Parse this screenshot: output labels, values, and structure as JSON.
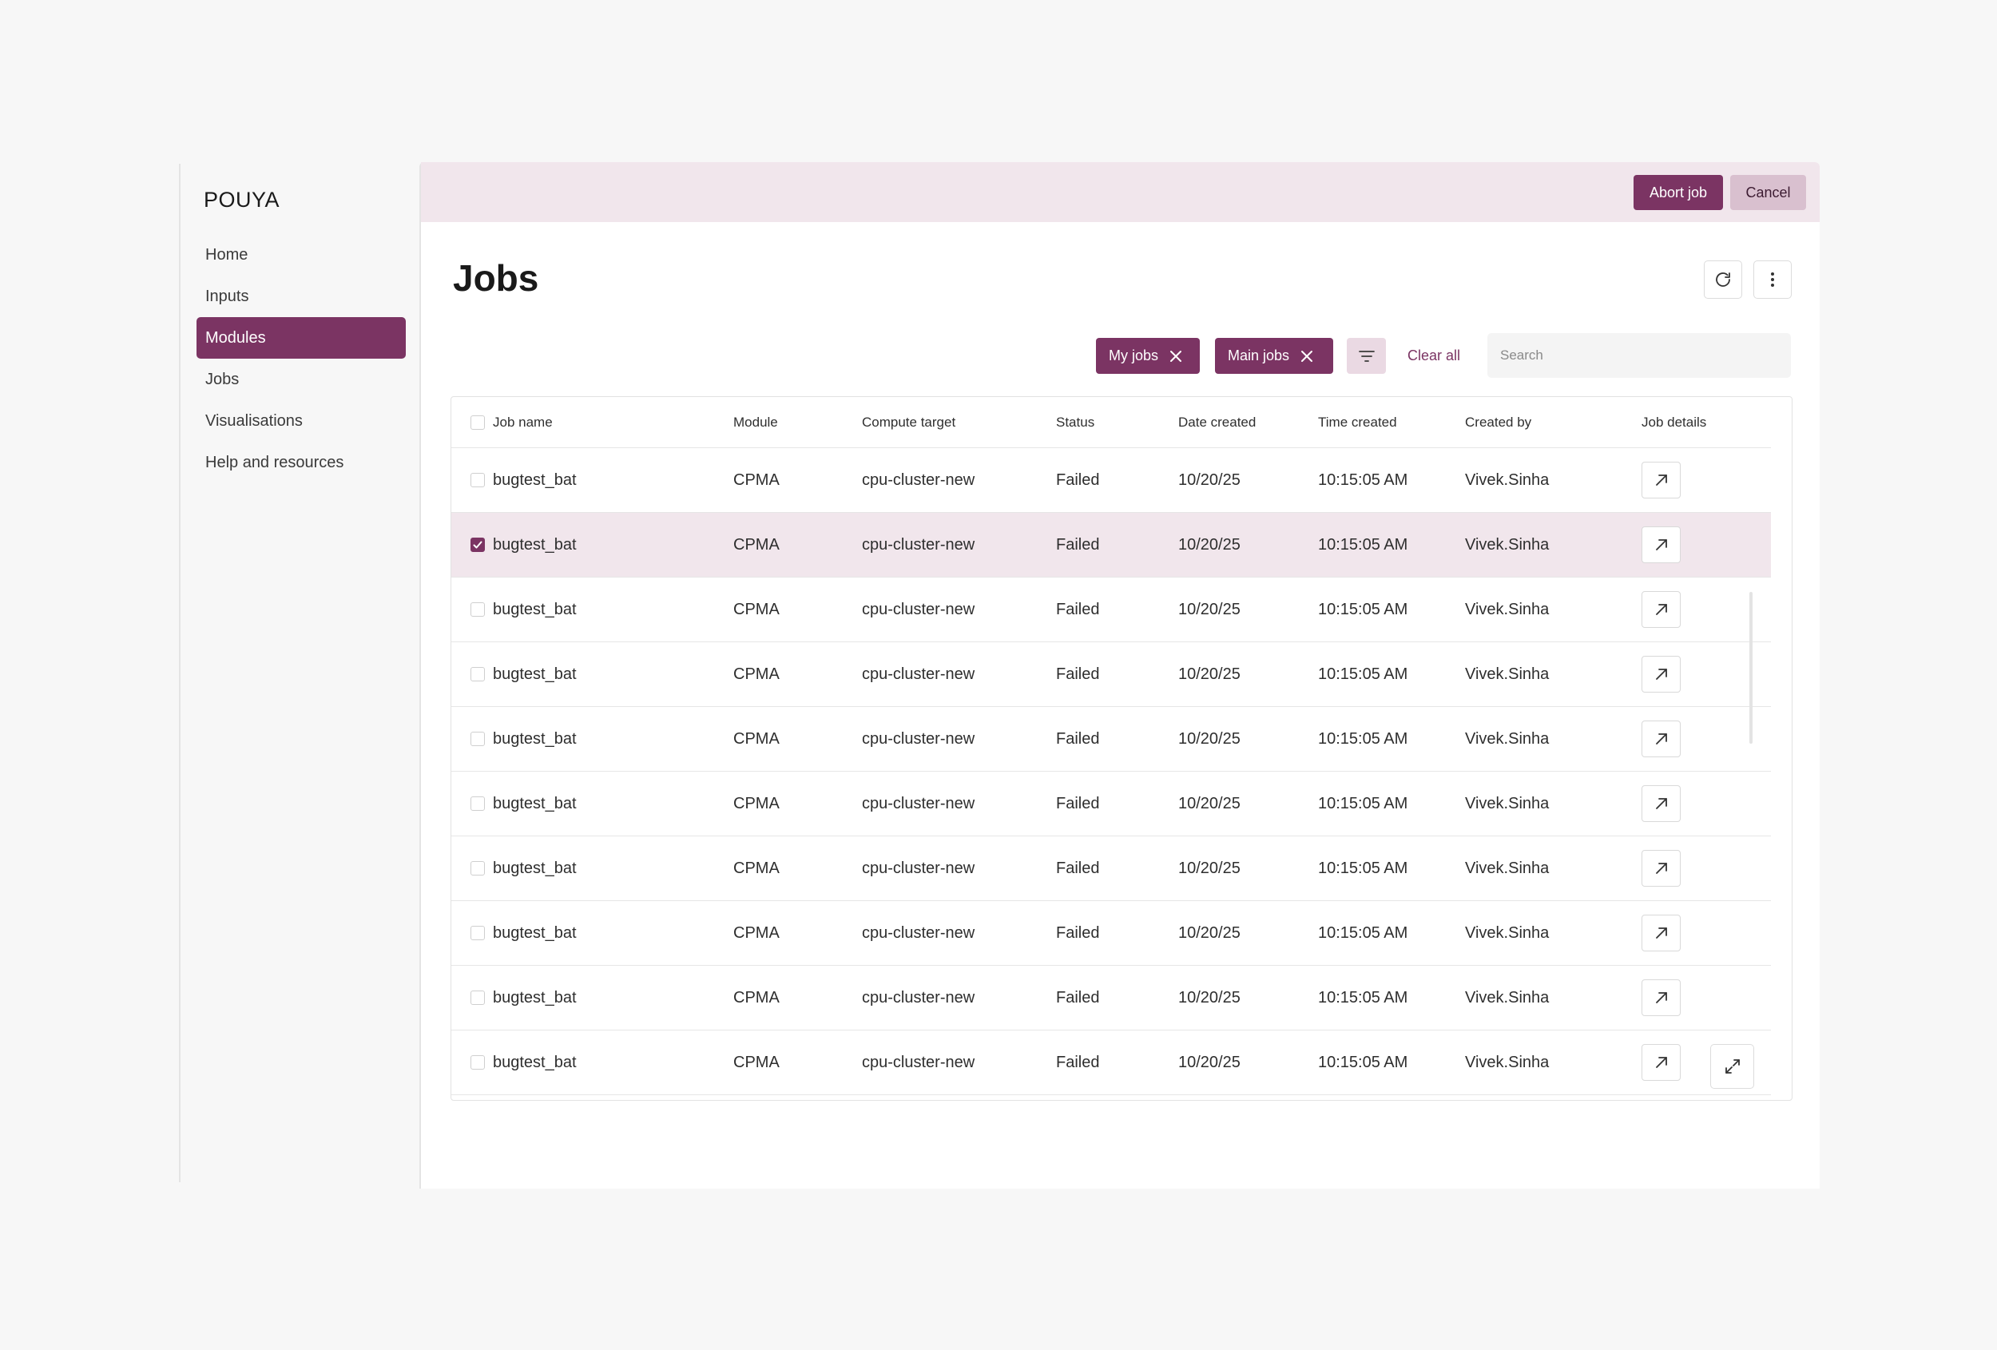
{
  "app": {
    "brand": "POUYA"
  },
  "sidebar": {
    "items": [
      {
        "label": "Home"
      },
      {
        "label": "Inputs"
      },
      {
        "label": "Modules"
      },
      {
        "label": "Jobs"
      },
      {
        "label": "Visualisations"
      },
      {
        "label": "Help and resources"
      }
    ],
    "active": "Modules"
  },
  "topbar": {
    "abort_label": "Abort job",
    "cancel_label": "Cancel"
  },
  "page": {
    "title": "Jobs"
  },
  "filters": {
    "chips": [
      {
        "label": "My jobs"
      },
      {
        "label": "Main jobs"
      }
    ],
    "clear_all": "Clear all",
    "search_placeholder": "Search"
  },
  "table": {
    "headers": {
      "job_name": "Job name",
      "module": "Module",
      "compute_target": "Compute target",
      "status": "Status",
      "date_created": "Date created",
      "time_created": "Time created",
      "created_by": "Created by",
      "job_details": "Job details"
    },
    "rows": [
      {
        "job_name": "bugtest_bat",
        "module": "CPMA",
        "compute_target": "cpu-cluster-new",
        "status": "Failed",
        "date": "10/20/25",
        "time": "10:15:05 AM",
        "created_by": "Vivek.Sinha",
        "selected": false
      },
      {
        "job_name": "bugtest_bat",
        "module": "CPMA",
        "compute_target": "cpu-cluster-new",
        "status": "Failed",
        "date": "10/20/25",
        "time": "10:15:05 AM",
        "created_by": "Vivek.Sinha",
        "selected": true
      },
      {
        "job_name": "bugtest_bat",
        "module": "CPMA",
        "compute_target": "cpu-cluster-new",
        "status": "Failed",
        "date": "10/20/25",
        "time": "10:15:05 AM",
        "created_by": "Vivek.Sinha",
        "selected": false
      },
      {
        "job_name": "bugtest_bat",
        "module": "CPMA",
        "compute_target": "cpu-cluster-new",
        "status": "Failed",
        "date": "10/20/25",
        "time": "10:15:05 AM",
        "created_by": "Vivek.Sinha",
        "selected": false
      },
      {
        "job_name": "bugtest_bat",
        "module": "CPMA",
        "compute_target": "cpu-cluster-new",
        "status": "Failed",
        "date": "10/20/25",
        "time": "10:15:05 AM",
        "created_by": "Vivek.Sinha",
        "selected": false
      },
      {
        "job_name": "bugtest_bat",
        "module": "CPMA",
        "compute_target": "cpu-cluster-new",
        "status": "Failed",
        "date": "10/20/25",
        "time": "10:15:05 AM",
        "created_by": "Vivek.Sinha",
        "selected": false
      },
      {
        "job_name": "bugtest_bat",
        "module": "CPMA",
        "compute_target": "cpu-cluster-new",
        "status": "Failed",
        "date": "10/20/25",
        "time": "10:15:05 AM",
        "created_by": "Vivek.Sinha",
        "selected": false
      },
      {
        "job_name": "bugtest_bat",
        "module": "CPMA",
        "compute_target": "cpu-cluster-new",
        "status": "Failed",
        "date": "10/20/25",
        "time": "10:15:05 AM",
        "created_by": "Vivek.Sinha",
        "selected": false
      },
      {
        "job_name": "bugtest_bat",
        "module": "CPMA",
        "compute_target": "cpu-cluster-new",
        "status": "Failed",
        "date": "10/20/25",
        "time": "10:15:05 AM",
        "created_by": "Vivek.Sinha",
        "selected": false
      },
      {
        "job_name": "bugtest_bat",
        "module": "CPMA",
        "compute_target": "cpu-cluster-new",
        "status": "Failed",
        "date": "10/20/25",
        "time": "10:15:05 AM",
        "created_by": "Vivek.Sinha",
        "selected": false
      }
    ]
  },
  "icons": {
    "refresh": "refresh-icon",
    "more": "more-vertical-icon",
    "close": "close-icon",
    "filter": "filter-lines-icon",
    "open": "arrow-up-right-icon",
    "expand": "expand-icon",
    "check": "check-icon"
  },
  "colors": {
    "accent": "#7b3463",
    "accent_soft": "#f1e6ec",
    "cancel_bg": "#d9c0cf",
    "filter_bg": "#ead9e3"
  }
}
